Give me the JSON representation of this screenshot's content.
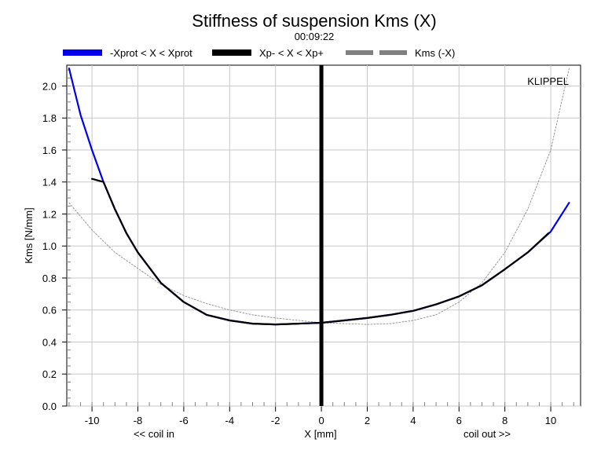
{
  "chart_data": {
    "type": "line",
    "title": "Stiffness of suspension Kms (X)",
    "subtitle": "00:09:22",
    "xlabel": "X [mm]",
    "ylabel": "Kms [N/mm]",
    "x_left_note": "<< coil in",
    "x_right_note": "coil out >>",
    "brand": "KLIPPEL",
    "xlim": [
      -11.1,
      11.3
    ],
    "ylim": [
      0.0,
      2.13
    ],
    "x_ticks": [
      -10,
      -8,
      -6,
      -4,
      -2,
      0,
      2,
      4,
      6,
      8,
      10
    ],
    "y_ticks": [
      0.0,
      0.2,
      0.4,
      0.6,
      0.8,
      1.0,
      1.2,
      1.4,
      1.6,
      1.8,
      2.0
    ],
    "x_tick_labels": [
      "-10",
      "-8",
      "-6",
      "-4",
      "-2",
      "0",
      "2",
      "4",
      "6",
      "8",
      "10"
    ],
    "y_tick_labels": [
      "0.0",
      "0.2",
      "0.4",
      "0.6",
      "0.8",
      "1.0",
      "1.2",
      "1.4",
      "1.6",
      "1.8",
      "2.0"
    ],
    "grid": true,
    "legend_position": "top",
    "legend": [
      {
        "label": "-Xprot < X < Xprot",
        "color": "#0000ee"
      },
      {
        "label": "Xp- < X < Xp+",
        "color": "#000000"
      },
      {
        "label": "Kms (-X)",
        "color": "#808080"
      }
    ],
    "series": [
      {
        "name": "-Xprot < X < Xprot",
        "color": "#0000ee",
        "x": [
          -11.0,
          -10.5,
          -10.0,
          -9.5,
          -9.0,
          -8.5,
          -8.0,
          -7.0,
          -6.0,
          -5.0,
          -4.0,
          -3.0,
          -2.0,
          -1.0,
          0.0,
          1.0,
          2.0,
          3.0,
          4.0,
          5.0,
          6.0,
          7.0,
          8.0,
          9.0,
          10.0,
          10.8
        ],
        "y": [
          2.11,
          1.82,
          1.6,
          1.4,
          1.23,
          1.08,
          0.96,
          0.77,
          0.65,
          0.57,
          0.535,
          0.515,
          0.51,
          0.515,
          0.52,
          0.535,
          0.55,
          0.57,
          0.595,
          0.635,
          0.685,
          0.755,
          0.855,
          0.96,
          1.09,
          1.27
        ]
      },
      {
        "name": "Xp- < X < Xp+",
        "color": "#000000",
        "x": [
          -10.0,
          -9.5,
          -9.0,
          -8.5,
          -8.0,
          -7.0,
          -6.0,
          -5.0,
          -4.0,
          -3.0,
          -2.0,
          -1.0,
          0.0,
          1.0,
          2.0,
          3.0,
          4.0,
          5.0,
          6.0,
          7.0,
          8.0,
          9.0,
          9.9
        ],
        "y": [
          1.42,
          1.4,
          1.23,
          1.08,
          0.96,
          0.77,
          0.65,
          0.57,
          0.535,
          0.515,
          0.51,
          0.515,
          0.52,
          0.535,
          0.55,
          0.57,
          0.595,
          0.635,
          0.685,
          0.755,
          0.855,
          0.96,
          1.08
        ]
      },
      {
        "name": "Kms (-X)",
        "color": "#808080",
        "x": [
          -11.0,
          -10.0,
          -9.0,
          -8.0,
          -7.0,
          -6.0,
          -5.0,
          -4.0,
          -3.0,
          -2.0,
          -1.0,
          0.0,
          1.0,
          2.0,
          3.0,
          4.0,
          5.0,
          6.0,
          7.0,
          8.0,
          9.0,
          10.0,
          10.8
        ],
        "y": [
          1.27,
          1.1,
          0.96,
          0.86,
          0.76,
          0.69,
          0.64,
          0.6,
          0.57,
          0.55,
          0.535,
          0.52,
          0.515,
          0.51,
          0.515,
          0.535,
          0.57,
          0.65,
          0.77,
          0.96,
          1.23,
          1.6,
          2.11
        ]
      }
    ],
    "markers": [
      {
        "x": 0.0,
        "color": "#000000"
      }
    ]
  }
}
